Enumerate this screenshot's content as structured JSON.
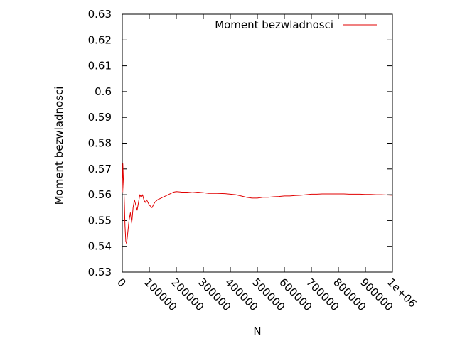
{
  "chart_data": {
    "type": "line",
    "title": "",
    "xlabel": "N",
    "ylabel": "Moment bezwladnosci",
    "xlim": [
      0,
      1000000
    ],
    "ylim": [
      0.53,
      0.63
    ],
    "x_ticks": [
      0,
      100000,
      200000,
      300000,
      400000,
      500000,
      600000,
      700000,
      800000,
      900000,
      1000000
    ],
    "x_tick_labels": [
      "0",
      "100000",
      "200000",
      "300000",
      "400000",
      "500000",
      "600000",
      "700000",
      "800000",
      "900000",
      "1e+06"
    ],
    "y_ticks": [
      0.53,
      0.54,
      0.55,
      0.56,
      0.57,
      0.58,
      0.59,
      0.6,
      0.61,
      0.62,
      0.63
    ],
    "y_tick_labels": [
      "0.53",
      "0.54",
      "0.55",
      "0.56",
      "0.57",
      "0.58",
      "0.59",
      "0.6",
      "0.61",
      "0.62",
      "0.63"
    ],
    "grid": false,
    "legend_position": "top-right",
    "series": [
      {
        "name": "Moment bezwladnosci",
        "color": "#e00000",
        "x": [
          0,
          2000,
          4000,
          6000,
          8000,
          10000,
          13000,
          16000,
          20000,
          25000,
          30000,
          35000,
          40000,
          45000,
          50000,
          55000,
          60000,
          65000,
          70000,
          75000,
          80000,
          85000,
          90000,
          95000,
          100000,
          110000,
          115000,
          120000,
          130000,
          140000,
          150000,
          160000,
          170000,
          180000,
          190000,
          200000,
          220000,
          240000,
          260000,
          280000,
          300000,
          320000,
          350000,
          380000,
          400000,
          420000,
          440000,
          460000,
          480000,
          500000,
          520000,
          540000,
          560000,
          580000,
          600000,
          620000,
          640000,
          660000,
          680000,
          700000,
          720000,
          740000,
          760000,
          780000,
          800000,
          820000,
          840000,
          860000,
          880000,
          900000,
          920000,
          940000,
          960000,
          980000,
          1000000
        ],
        "y": [
          0.561,
          0.572,
          0.566,
          0.562,
          0.556,
          0.548,
          0.542,
          0.541,
          0.545,
          0.55,
          0.553,
          0.549,
          0.555,
          0.558,
          0.556,
          0.554,
          0.557,
          0.56,
          0.559,
          0.56,
          0.558,
          0.557,
          0.558,
          0.557,
          0.556,
          0.555,
          0.556,
          0.557,
          0.558,
          0.5585,
          0.559,
          0.5595,
          0.56,
          0.5605,
          0.561,
          0.5612,
          0.561,
          0.561,
          0.5608,
          0.561,
          0.5608,
          0.5605,
          0.5605,
          0.5604,
          0.5602,
          0.56,
          0.5595,
          0.559,
          0.5587,
          0.5587,
          0.559,
          0.559,
          0.5592,
          0.5593,
          0.5595,
          0.5595,
          0.5597,
          0.5598,
          0.56,
          0.5602,
          0.5602,
          0.5603,
          0.5603,
          0.5603,
          0.5603,
          0.5603,
          0.5602,
          0.5602,
          0.5602,
          0.5601,
          0.5601,
          0.56,
          0.56,
          0.5599,
          0.5598
        ]
      }
    ]
  }
}
